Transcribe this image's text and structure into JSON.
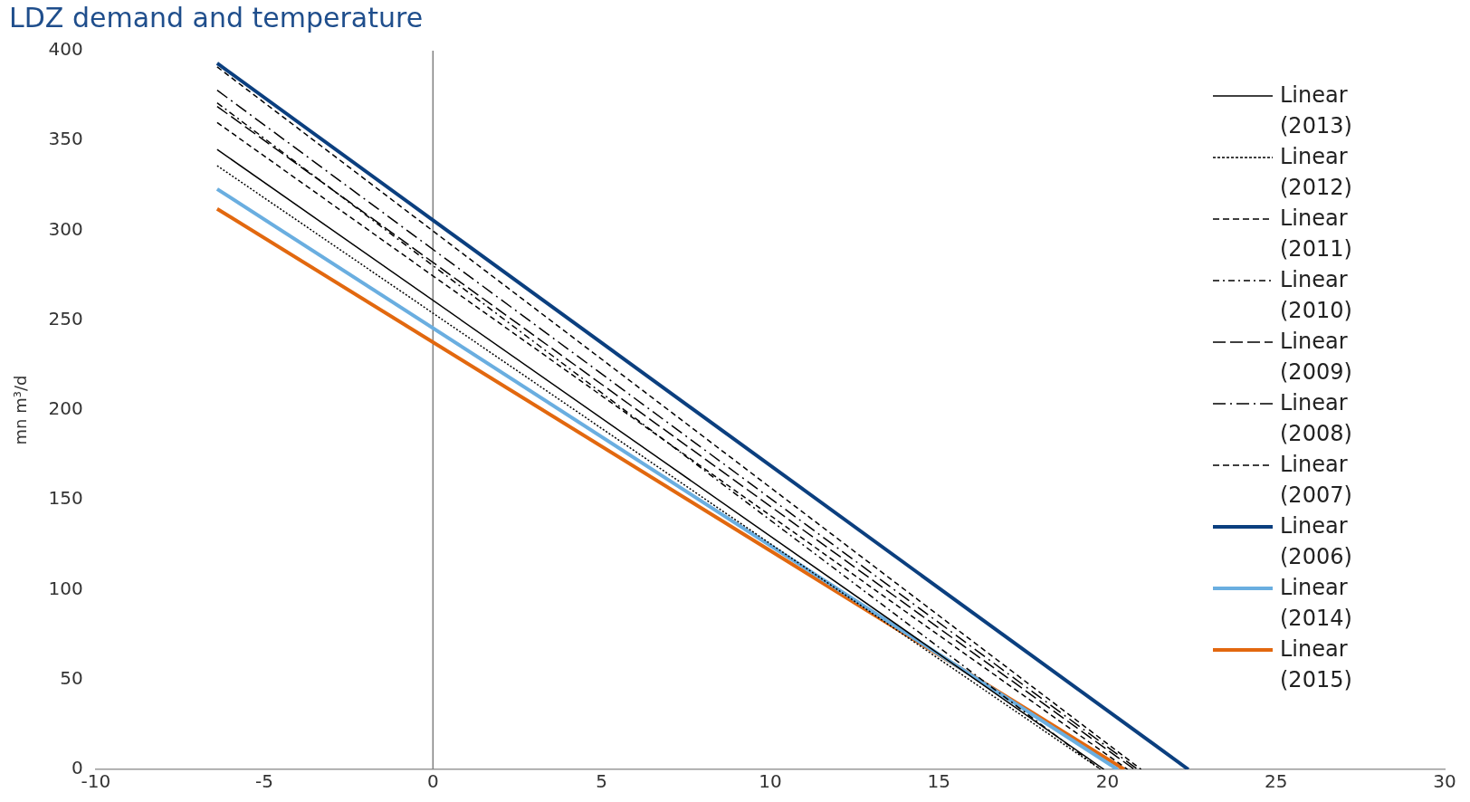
{
  "chart_data": {
    "type": "line",
    "title": "LDZ demand and temperature",
    "ylabel": "mn m³/d",
    "xlim": [
      -10,
      30
    ],
    "xticks": [
      -10,
      -5,
      0,
      5,
      10,
      15,
      20,
      25,
      30
    ],
    "ylim": [
      0,
      400
    ],
    "yticks": [
      0,
      50,
      100,
      150,
      200,
      250,
      300,
      350,
      400
    ],
    "grid": false,
    "legend": "top right",
    "marker": "none",
    "ref_lines": [
      {
        "axis": "x",
        "value": 0,
        "color": "#808080"
      }
    ],
    "series": [
      {
        "name": "Linear (2013)",
        "color": "#000000",
        "line_style": "solid",
        "x": [
          -6.4,
          19.9
        ],
        "values": [
          345,
          0
        ]
      },
      {
        "name": "Linear (2012)",
        "color": "#000000",
        "line_style": "dotted",
        "x": [
          -6.4,
          19.8
        ],
        "values": [
          336,
          0
        ]
      },
      {
        "name": "Linear (2011)",
        "color": "#000000",
        "line_style": "dashed",
        "x": [
          -6.4,
          20.6
        ],
        "values": [
          360,
          0
        ]
      },
      {
        "name": "Linear (2010)",
        "color": "#000000",
        "line_style": "dashdot",
        "x": [
          -6.4,
          19.8
        ],
        "values": [
          371,
          0
        ]
      },
      {
        "name": "Linear (2009)",
        "color": "#000000",
        "line_style": "longdash",
        "x": [
          -6.4,
          20.8
        ],
        "values": [
          369,
          0
        ]
      },
      {
        "name": "Linear (2008)",
        "color": "#000000",
        "line_style": "longdashdot",
        "x": [
          -6.4,
          20.9
        ],
        "values": [
          378,
          0
        ]
      },
      {
        "name": "Linear (2007)",
        "color": "#000000",
        "line_style": "dashed",
        "x": [
          -6.4,
          21.0
        ],
        "values": [
          391,
          0
        ]
      },
      {
        "name": "Linear (2006)",
        "color": "#0b3f7f",
        "line_style": "solid",
        "x": [
          -6.4,
          22.4
        ],
        "values": [
          393,
          0
        ]
      },
      {
        "name": "Linear (2014)",
        "color": "#6aaee0",
        "line_style": "solid",
        "x": [
          -6.4,
          20.3
        ],
        "values": [
          323,
          0
        ]
      },
      {
        "name": "Linear (2015)",
        "color": "#e2680f",
        "line_style": "solid",
        "x": [
          -6.4,
          20.5
        ],
        "values": [
          312,
          0
        ]
      }
    ]
  }
}
